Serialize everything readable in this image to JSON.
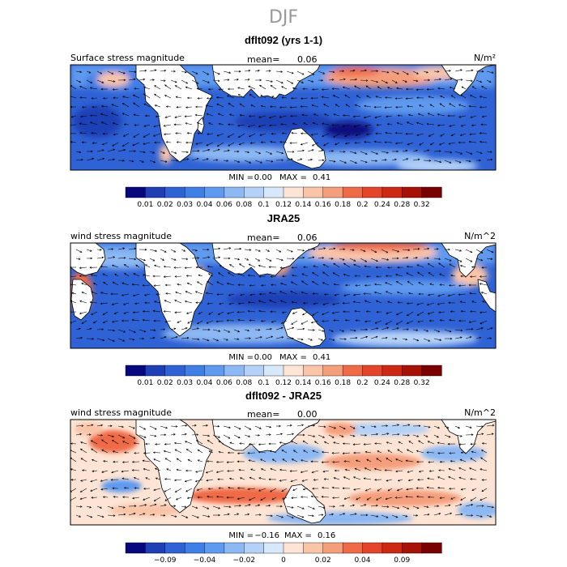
{
  "chart_data": {
    "type": "heatmap",
    "title": "DJF",
    "panels": [
      {
        "title": "dflt092 (yrs 1-1)",
        "variable": "Surface stress magnitude",
        "mean_label": "mean=",
        "mean": "0.06",
        "units": "N/m²",
        "min_label": "MIN =",
        "min": "0.00",
        "max_label": "MAX =",
        "max": "0.41",
        "colorbar": {
          "ticks": [
            "0.01",
            "0.02",
            "0.03",
            "0.04",
            "0.06",
            "0.08",
            "0.1",
            "0.12",
            "0.14",
            "0.16",
            "0.18",
            "0.2",
            "0.24",
            "0.28",
            "0.32"
          ],
          "colors": [
            "#08087e",
            "#1f3fb5",
            "#2f62d4",
            "#3f7fe6",
            "#5e9aef",
            "#8cb8f3",
            "#b4d1f7",
            "#d8e8fb",
            "#fde4d4",
            "#fac4a9",
            "#f59e7c",
            "#ef6b47",
            "#e4442a",
            "#cc2814",
            "#a61207",
            "#7a0000"
          ]
        },
        "vectors": true
      },
      {
        "title": "JRA25",
        "variable": "wind stress magnitude",
        "mean_label": "mean=",
        "mean": "0.06",
        "units": "N/m^2",
        "min_label": "MIN =",
        "min": "0.00",
        "max_label": "MAX =",
        "max": "0.41",
        "colorbar": {
          "ticks": [
            "0.01",
            "0.02",
            "0.03",
            "0.04",
            "0.06",
            "0.08",
            "0.1",
            "0.12",
            "0.14",
            "0.16",
            "0.18",
            "0.2",
            "0.24",
            "0.28",
            "0.32"
          ],
          "colors": [
            "#08087e",
            "#1f3fb5",
            "#2f62d4",
            "#3f7fe6",
            "#5e9aef",
            "#8cb8f3",
            "#b4d1f7",
            "#d8e8fb",
            "#fde4d4",
            "#fac4a9",
            "#f59e7c",
            "#ef6b47",
            "#e4442a",
            "#cc2814",
            "#a61207",
            "#7a0000"
          ]
        },
        "vectors": true
      },
      {
        "title": "dflt092 - JRA25",
        "variable": "wind stress magnitude",
        "mean_label": "mean=",
        "mean": "0.00",
        "units": "N/m^2",
        "min_label": "MIN =",
        "min": "−0.16",
        "max_label": "MAX =",
        "max": "0.16",
        "colorbar": {
          "ticks": [
            "",
            "−0.09",
            "",
            "−0.04",
            "",
            "−0.02",
            "",
            "0",
            "",
            "0.02",
            "",
            "0.04",
            "",
            "0.09",
            ""
          ],
          "colors": [
            "#08087e",
            "#1f3fb5",
            "#2f62d4",
            "#3f7fe6",
            "#5e9aef",
            "#8cb8f3",
            "#b4d1f7",
            "#d8e8fb",
            "#fde4d4",
            "#fac4a9",
            "#f59e7c",
            "#ef6b47",
            "#e4442a",
            "#cc2814",
            "#a61207",
            "#7a0000"
          ]
        },
        "vectors": true
      }
    ]
  }
}
